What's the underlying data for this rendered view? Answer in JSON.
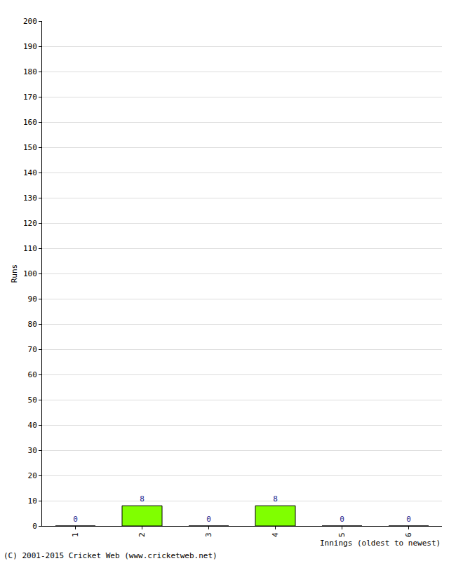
{
  "chart_data": {
    "type": "bar",
    "categories": [
      "1",
      "2",
      "3",
      "4",
      "5",
      "6"
    ],
    "values": [
      0,
      8,
      0,
      8,
      0,
      0
    ],
    "color": "#80ff00",
    "x_label": "Innings (oldest to newest)",
    "y_label": "Runs",
    "annotations": [
      "(C) 2001-2015 Cricket Web (www.cricketweb.net)"
    ],
    "ylim": [
      0,
      200
    ],
    "yticks": [
      0,
      10,
      20,
      30,
      40,
      50,
      60,
      70,
      80,
      90,
      100,
      110,
      120,
      130,
      140,
      150,
      160,
      170,
      180,
      190,
      200
    ],
    "grid": true,
    "data_labels": true
  }
}
